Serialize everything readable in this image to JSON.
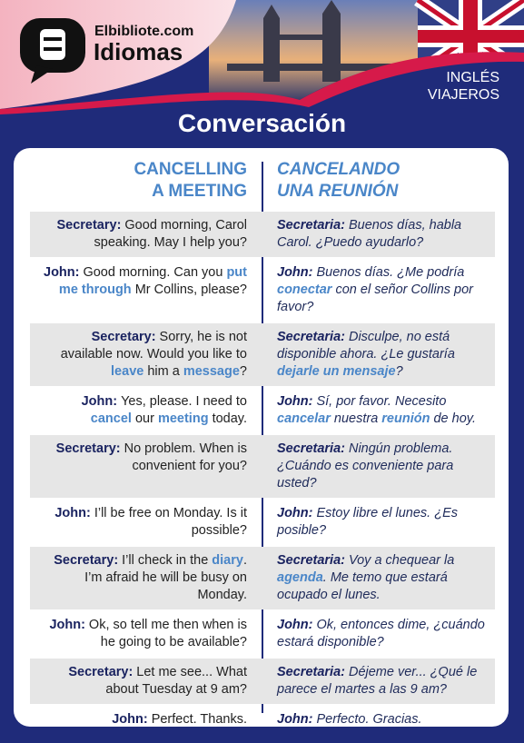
{
  "header": {
    "site": "Elbibliote.com",
    "brand": "Idiomas",
    "badge": [
      "INGLÉS",
      "VIAJEROS"
    ]
  },
  "title": "Conversación",
  "columns": {
    "en": [
      "CANCELLING",
      "A MEETING"
    ],
    "es": [
      "CANCELANDO",
      "UNA REUNIÓN"
    ]
  },
  "rows": [
    {
      "en": {
        "speaker": "Secretary:",
        "text": [
          "Good morning, Carol speaking. May I help you?"
        ]
      },
      "es": {
        "speaker": "Secretaria:",
        "text": [
          "Buenos días, habla Carol. ¿Puedo ayudarlo?"
        ]
      }
    },
    {
      "en": {
        "speaker": "John:",
        "text": [
          "Good morning. Can you ",
          "put me through",
          " Mr Collins, please?"
        ]
      },
      "es": {
        "speaker": "John:",
        "text": [
          "Buenos días. ¿Me podría ",
          "conectar",
          " con el señor Collins por favor?"
        ]
      }
    },
    {
      "en": {
        "speaker": "Secretary:",
        "text": [
          "Sorry, he is not available now. Would you like to ",
          "leave",
          " him a ",
          "message",
          "?"
        ]
      },
      "es": {
        "speaker": "Secretaria:",
        "text": [
          "Disculpe, no está disponible ahora. ¿Le gustaría ",
          "dejarle un mensaje",
          "?"
        ]
      }
    },
    {
      "en": {
        "speaker": "John:",
        "text": [
          "Yes, please. I need to ",
          "cancel",
          " our ",
          "meeting",
          " today."
        ]
      },
      "es": {
        "speaker": "John:",
        "text": [
          "Sí, por favor. Necesito ",
          "cancelar",
          " nuestra ",
          "reunión",
          " de hoy."
        ]
      }
    },
    {
      "en": {
        "speaker": "Secretary:",
        "text": [
          "No problem. When is convenient for you?"
        ]
      },
      "es": {
        "speaker": "Secretaria:",
        "text": [
          "Ningún problema. ¿Cuándo es conveniente para usted?"
        ]
      }
    },
    {
      "en": {
        "speaker": "John:",
        "text": [
          "I’ll be free on Monday. Is it possible?"
        ]
      },
      "es": {
        "speaker": "John:",
        "text": [
          "Estoy libre el lunes. ¿Es posible?"
        ]
      }
    },
    {
      "en": {
        "speaker": "Secretary:",
        "text": [
          "I’ll check in the ",
          "diary",
          ". I’m afraid he will be busy on Monday."
        ]
      },
      "es": {
        "speaker": "Secretaria:",
        "text": [
          "Voy a chequear la ",
          "agenda",
          ". Me temo que estará ocupado el lunes."
        ]
      }
    },
    {
      "en": {
        "speaker": "John:",
        "text": [
          "Ok, so tell me then when is he going to be available?"
        ]
      },
      "es": {
        "speaker": "John:",
        "text": [
          "Ok, entonces dime, ¿cuándo estará disponible?"
        ]
      }
    },
    {
      "en": {
        "speaker": "Secretary:",
        "text": [
          "Let me see... What about Tuesday at 9 am?"
        ]
      },
      "es": {
        "speaker": "Secretaria:",
        "text": [
          "Déjeme ver... ¿Qué le parece el martes a las 9 am?"
        ]
      }
    },
    {
      "en": {
        "speaker": "John:",
        "text": [
          "Perfect. Thanks."
        ]
      },
      "es": {
        "speaker": "John:",
        "text": [
          "Perfecto. Gracias."
        ]
      }
    }
  ]
}
